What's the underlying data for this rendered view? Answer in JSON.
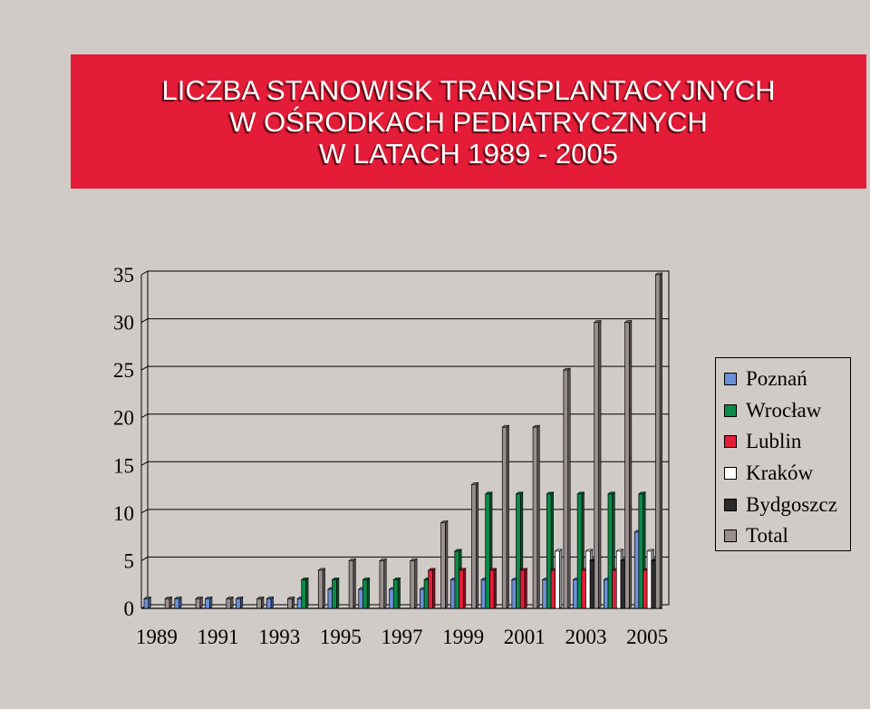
{
  "title": {
    "line1": "LICZBA STANOWISK TRANSPLANTACYJNYCH",
    "line2": "W OŚRODKACH PEDIATRYCZNYCH",
    "line3": "W LATACH 1989 - 2005"
  },
  "colors": {
    "background": "#d1cbc8",
    "banner": "#e41c38"
  },
  "chart_data": {
    "type": "bar",
    "categories": [
      "1989",
      "1990",
      "1991",
      "1992",
      "1993",
      "1994",
      "1995",
      "1996",
      "1997",
      "1998",
      "1999",
      "2000",
      "2001",
      "2002",
      "2003",
      "2004",
      "2005"
    ],
    "x_tick_labels": [
      "1989",
      "1991",
      "1993",
      "1995",
      "1997",
      "1999",
      "2001",
      "2003",
      "2005"
    ],
    "ylim": [
      0,
      35
    ],
    "y_ticks": [
      0,
      5,
      10,
      15,
      20,
      25,
      30,
      35
    ],
    "grid": true,
    "legend_position": "right",
    "series": [
      {
        "name": "Poznań",
        "color": "#6b8fd6",
        "values": [
          1,
          1,
          1,
          1,
          1,
          1,
          2,
          2,
          2,
          2,
          3,
          3,
          3,
          3,
          3,
          3,
          8
        ]
      },
      {
        "name": "Wrocław",
        "color": "#0b8a4a",
        "values": [
          0,
          0,
          0,
          0,
          0,
          3,
          3,
          3,
          3,
          3,
          6,
          12,
          12,
          12,
          12,
          12,
          12
        ]
      },
      {
        "name": "Lublin",
        "color": "#e41c38",
        "values": [
          0,
          0,
          0,
          0,
          0,
          0,
          0,
          0,
          0,
          4,
          4,
          4,
          4,
          4,
          4,
          4,
          4
        ]
      },
      {
        "name": "Kraków",
        "color": "#ffffff",
        "values": [
          0,
          0,
          0,
          0,
          0,
          0,
          0,
          0,
          0,
          0,
          0,
          0,
          0,
          6,
          6,
          6,
          6
        ]
      },
      {
        "name": "Bydgoszcz",
        "color": "#2b2b2b",
        "values": [
          0,
          0,
          0,
          0,
          0,
          0,
          0,
          0,
          0,
          0,
          0,
          0,
          0,
          0,
          5,
          5,
          5
        ]
      },
      {
        "name": "Total",
        "color": "#9a8f8f",
        "values": [
          1,
          1,
          1,
          1,
          1,
          4,
          5,
          5,
          5,
          9,
          13,
          19,
          19,
          25,
          30,
          30,
          35
        ]
      }
    ]
  }
}
